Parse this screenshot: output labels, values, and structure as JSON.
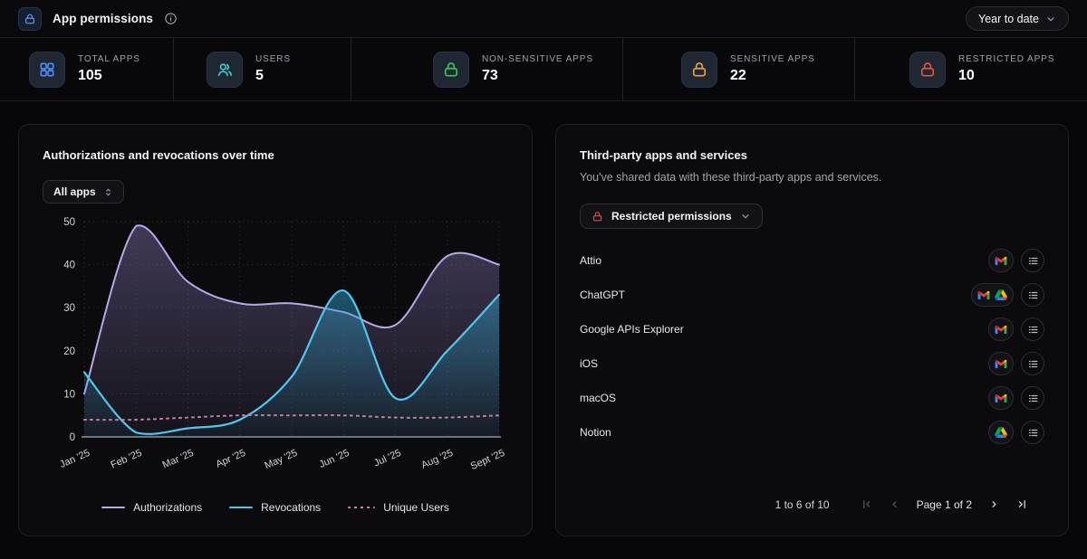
{
  "header": {
    "title": "App permissions",
    "range_selector": "Year to date"
  },
  "stats": {
    "items": [
      {
        "label": "TOTAL APPS",
        "value": "105",
        "icon": "grid-icon",
        "color": "#4f8df6"
      },
      {
        "label": "USERS",
        "value": "5",
        "icon": "users-icon",
        "color": "#38d3c5"
      },
      {
        "label": "NON-SENSITIVE APPS",
        "value": "73",
        "icon": "lock-icon",
        "color": "#34c759"
      },
      {
        "label": "SENSITIVE APPS",
        "value": "22",
        "icon": "lock-icon",
        "color": "#e9a23b"
      },
      {
        "label": "RESTRICTED APPS",
        "value": "10",
        "icon": "lock-icon",
        "color": "#e8503f"
      }
    ]
  },
  "chart_panel": {
    "title": "Authorizations and revocations over time",
    "filter_label": "All apps"
  },
  "chart_data": {
    "type": "line",
    "title": "Authorizations and revocations over time",
    "categories": [
      "Jan '25",
      "Feb '25",
      "Mar '25",
      "Apr '25",
      "May '25",
      "Jun '25",
      "Jul '25",
      "Aug '25",
      "Sept '25"
    ],
    "series": [
      {
        "name": "Authorizations",
        "color": "#b7a8e8",
        "style": "area",
        "values": [
          10,
          49,
          36,
          31,
          31,
          29,
          26,
          42,
          40
        ]
      },
      {
        "name": "Revocations",
        "color": "#4fc8ee",
        "style": "area",
        "values": [
          15,
          1,
          2,
          4,
          14,
          34,
          9,
          20,
          33
        ]
      },
      {
        "name": "Unique Users",
        "color": "#c5809f",
        "style": "dotted",
        "values": [
          4,
          4,
          4.5,
          5,
          5,
          5,
          4.5,
          4.5,
          5
        ]
      }
    ],
    "ylim": [
      0,
      50
    ],
    "yticks": [
      0,
      10,
      20,
      30,
      40,
      50
    ],
    "grid": "dotted",
    "legend_position": "bottom"
  },
  "apps_panel": {
    "title": "Third-party apps and services",
    "subtitle": "You've shared data with these third-party apps and services.",
    "filter_label": "Restricted permissions",
    "filter_icon_color": "#ef4444",
    "rows": [
      {
        "name": "Attio",
        "services": [
          "gmail"
        ]
      },
      {
        "name": "ChatGPT",
        "services": [
          "gmail",
          "drive"
        ]
      },
      {
        "name": "Google APIs Explorer",
        "services": [
          "gmail"
        ]
      },
      {
        "name": "iOS",
        "services": [
          "gmail"
        ]
      },
      {
        "name": "macOS",
        "services": [
          "gmail"
        ]
      },
      {
        "name": "Notion",
        "services": [
          "drive"
        ]
      }
    ],
    "pagination": {
      "range": "1 to 6 of 10",
      "page": "Page 1 of 2"
    }
  }
}
